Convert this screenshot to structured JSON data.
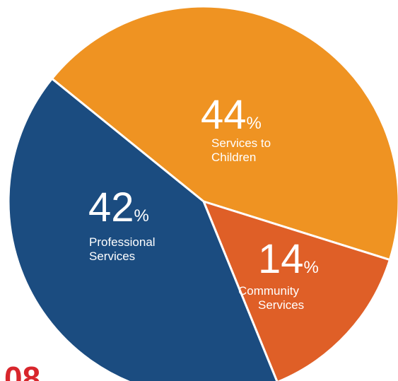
{
  "chart_data": {
    "type": "pie",
    "slices": [
      {
        "value": 44,
        "percent_symbol": "%",
        "label_lines": [
          "Services to",
          "Children"
        ],
        "color": "#ef9322"
      },
      {
        "value": 14,
        "percent_symbol": "%",
        "label_lines": [
          "Community",
          "Services"
        ],
        "color": "#df5f27"
      },
      {
        "value": 42,
        "percent_symbol": "%",
        "label_lines": [
          "Professional",
          "Services"
        ],
        "color": "#1b4c80"
      }
    ],
    "corner_text": "08"
  }
}
